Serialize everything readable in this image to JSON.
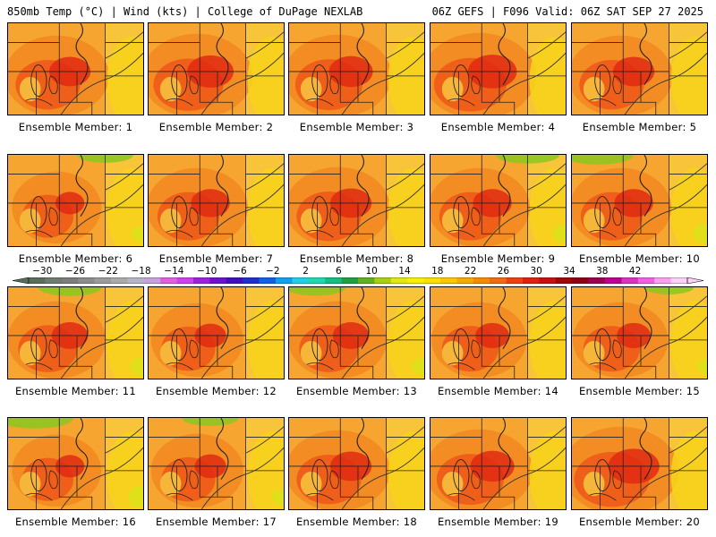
{
  "header": {
    "left": "850mb Temp (°C) | Wind (kts) | College of DuPage NEXLAB",
    "right": "06Z GEFS | F096 Valid: 06Z SAT SEP 27 2025"
  },
  "panels": [
    {
      "label": "Ensemble Member: 1",
      "heat": 0.55,
      "cool": 0.0
    },
    {
      "label": "Ensemble Member: 2",
      "heat": 0.65,
      "cool": 0.0
    },
    {
      "label": "Ensemble Member: 3",
      "heat": 0.6,
      "cool": 0.0
    },
    {
      "label": "Ensemble Member: 4",
      "heat": 0.7,
      "cool": 0.0
    },
    {
      "label": "Ensemble Member: 5",
      "heat": 0.55,
      "cool": 0.0
    },
    {
      "label": "Ensemble Member: 6",
      "heat": 0.3,
      "cool": 0.3
    },
    {
      "label": "Ensemble Member: 7",
      "heat": 0.5,
      "cool": 0.0
    },
    {
      "label": "Ensemble Member: 8",
      "heat": 0.55,
      "cool": 0.0
    },
    {
      "label": "Ensemble Member: 9",
      "heat": 0.5,
      "cool": 0.4
    },
    {
      "label": "Ensemble Member: 10",
      "heat": 0.5,
      "cool": 0.5
    },
    {
      "label": "Ensemble Member: 11",
      "heat": 0.45,
      "cool": 0.4
    },
    {
      "label": "Ensemble Member: 12",
      "heat": 0.35,
      "cool": 0.0
    },
    {
      "label": "Ensemble Member: 13",
      "heat": 0.45,
      "cool": 0.35
    },
    {
      "label": "Ensemble Member: 14",
      "heat": 0.4,
      "cool": 0.0
    },
    {
      "label": "Ensemble Member: 15",
      "heat": 0.4,
      "cool": 0.2
    },
    {
      "label": "Ensemble Member: 16",
      "heat": 0.3,
      "cool": 0.6
    },
    {
      "label": "Ensemble Member: 17",
      "heat": 0.35,
      "cool": 0.3
    },
    {
      "label": "Ensemble Member: 18",
      "heat": 0.55,
      "cool": 0.0
    },
    {
      "label": "Ensemble Member: 19",
      "heat": 0.6,
      "cool": 0.0
    },
    {
      "label": "Ensemble Member: 20",
      "heat": 0.75,
      "cool": 0.0
    }
  ],
  "colorbar": {
    "labels": [
      "−30",
      "−26",
      "−22",
      "−18",
      "−14",
      "−10",
      "−6",
      "−2",
      "2",
      "6",
      "10",
      "14",
      "18",
      "22",
      "26",
      "30",
      "34",
      "38",
      "42"
    ],
    "colors": [
      "#5a6e5a",
      "#6e7e6e",
      "#7d7d7d",
      "#8c8c8c",
      "#9b9b9b",
      "#aaaaaa",
      "#b5b5c8",
      "#c8a0e0",
      "#e060e0",
      "#d040f0",
      "#a020e0",
      "#7010d0",
      "#4010c0",
      "#2030d0",
      "#1060e8",
      "#10a0f0",
      "#20d0e8",
      "#20d8b0",
      "#10c080",
      "#20a040",
      "#60b020",
      "#a8d010",
      "#e0e810",
      "#f8f000",
      "#fce000",
      "#fbc800",
      "#f9aa00",
      "#f88a00",
      "#f46a10",
      "#ee4010",
      "#e02010",
      "#c81010",
      "#a00808",
      "#900010",
      "#a00050",
      "#c00090",
      "#e030c0",
      "#f060e0",
      "#f8a0f0",
      "#fcd0f8"
    ]
  }
}
